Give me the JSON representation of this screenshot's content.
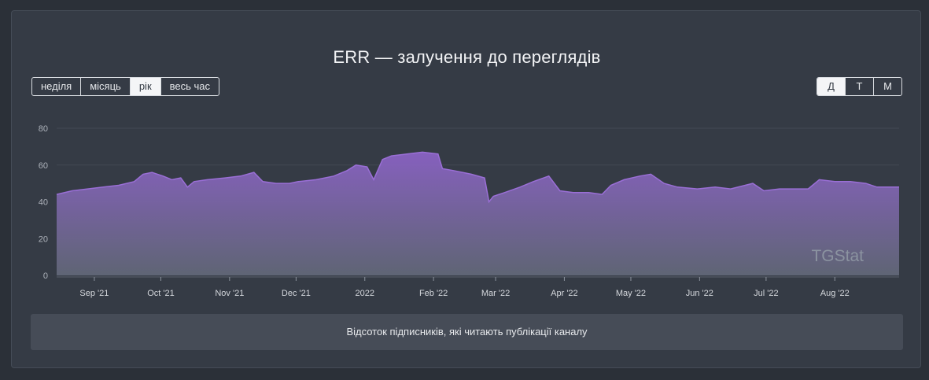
{
  "title": "ERR — залучення до переглядів",
  "period_buttons": [
    {
      "label": "неділя",
      "active": false
    },
    {
      "label": "місяць",
      "active": false
    },
    {
      "label": "рік",
      "active": true
    },
    {
      "label": "весь час",
      "active": false
    }
  ],
  "granularity_buttons": [
    {
      "label": "Д",
      "active": true
    },
    {
      "label": "Т",
      "active": false
    },
    {
      "label": "М",
      "active": false
    }
  ],
  "watermark": "TGStat",
  "footer_text": "Відсоток підписників, які читають публікації каналу",
  "colors": {
    "area_fill_top": "#8a62c4",
    "area_fill_bottom": "#616777",
    "line": "#9a6fd6",
    "background": "#353b45"
  },
  "chart_data": {
    "type": "area",
    "ylim": [
      0,
      80
    ],
    "yticks": [
      0,
      20,
      40,
      60,
      80
    ],
    "xlim": [
      "2021-08-15",
      "2022-08-30"
    ],
    "xticks": [
      {
        "date": "2021-09-01",
        "label": "Sep '21"
      },
      {
        "date": "2021-10-01",
        "label": "Oct '21"
      },
      {
        "date": "2021-11-01",
        "label": "Nov '21"
      },
      {
        "date": "2021-12-01",
        "label": "Dec '21"
      },
      {
        "date": "2022-01-01",
        "label": "2022"
      },
      {
        "date": "2022-02-01",
        "label": "Feb '22"
      },
      {
        "date": "2022-03-01",
        "label": "Mar '22"
      },
      {
        "date": "2022-04-01",
        "label": "Apr '22"
      },
      {
        "date": "2022-05-01",
        "label": "May '22"
      },
      {
        "date": "2022-06-01",
        "label": "Jun '22"
      },
      {
        "date": "2022-07-01",
        "label": "Jul '22"
      },
      {
        "date": "2022-08-01",
        "label": "Aug '22"
      }
    ],
    "grid": true,
    "points": [
      [
        "2021-08-15",
        44
      ],
      [
        "2021-08-22",
        46
      ],
      [
        "2021-08-29",
        47
      ],
      [
        "2021-09-05",
        48
      ],
      [
        "2021-09-12",
        49
      ],
      [
        "2021-09-19",
        51
      ],
      [
        "2021-09-23",
        55
      ],
      [
        "2021-09-27",
        56
      ],
      [
        "2021-10-02",
        54
      ],
      [
        "2021-10-06",
        52
      ],
      [
        "2021-10-10",
        53
      ],
      [
        "2021-10-13",
        48
      ],
      [
        "2021-10-16",
        51
      ],
      [
        "2021-10-22",
        52
      ],
      [
        "2021-10-30",
        53
      ],
      [
        "2021-11-06",
        54
      ],
      [
        "2021-11-12",
        56
      ],
      [
        "2021-11-16",
        51
      ],
      [
        "2021-11-22",
        50
      ],
      [
        "2021-11-28",
        50
      ],
      [
        "2021-12-02",
        51
      ],
      [
        "2021-12-10",
        52
      ],
      [
        "2021-12-18",
        54
      ],
      [
        "2021-12-24",
        57
      ],
      [
        "2021-12-28",
        60
      ],
      [
        "2022-01-02",
        59
      ],
      [
        "2022-01-05",
        52
      ],
      [
        "2022-01-09",
        63
      ],
      [
        "2022-01-13",
        65
      ],
      [
        "2022-01-20",
        66
      ],
      [
        "2022-01-27",
        67
      ],
      [
        "2022-02-03",
        66
      ],
      [
        "2022-02-05",
        58
      ],
      [
        "2022-02-10",
        57
      ],
      [
        "2022-02-18",
        55
      ],
      [
        "2022-02-24",
        53
      ],
      [
        "2022-02-26",
        40
      ],
      [
        "2022-02-28",
        43
      ],
      [
        "2022-03-05",
        45
      ],
      [
        "2022-03-12",
        48
      ],
      [
        "2022-03-18",
        51
      ],
      [
        "2022-03-25",
        54
      ],
      [
        "2022-03-30",
        46
      ],
      [
        "2022-04-05",
        45
      ],
      [
        "2022-04-12",
        45
      ],
      [
        "2022-04-18",
        44
      ],
      [
        "2022-04-22",
        49
      ],
      [
        "2022-04-28",
        52
      ],
      [
        "2022-05-05",
        54
      ],
      [
        "2022-05-10",
        55
      ],
      [
        "2022-05-16",
        50
      ],
      [
        "2022-05-22",
        48
      ],
      [
        "2022-05-31",
        47
      ],
      [
        "2022-06-08",
        48
      ],
      [
        "2022-06-15",
        47
      ],
      [
        "2022-06-25",
        50
      ],
      [
        "2022-06-30",
        46
      ],
      [
        "2022-07-07",
        47
      ],
      [
        "2022-07-14",
        47
      ],
      [
        "2022-07-20",
        47
      ],
      [
        "2022-07-25",
        52
      ],
      [
        "2022-08-01",
        51
      ],
      [
        "2022-08-08",
        51
      ],
      [
        "2022-08-15",
        50
      ],
      [
        "2022-08-20",
        48
      ],
      [
        "2022-08-30",
        48
      ]
    ]
  }
}
